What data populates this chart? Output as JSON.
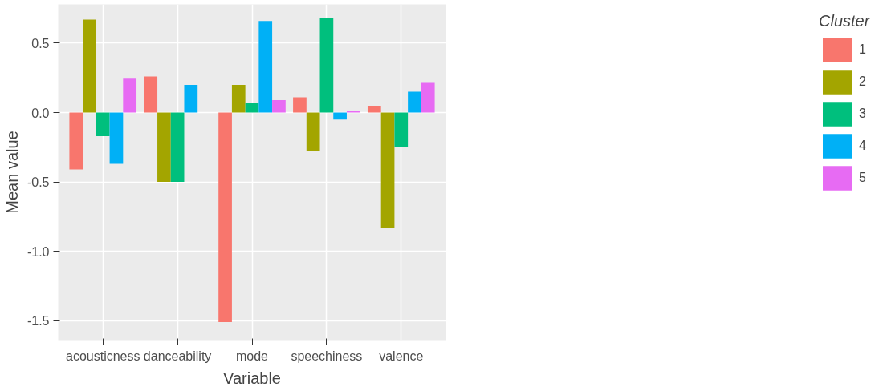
{
  "chart_data": {
    "type": "bar",
    "xlabel": "Variable",
    "ylabel": "Mean value",
    "legend_title": "Cluster",
    "legend": "right",
    "grid": true,
    "categories": [
      "acousticness",
      "danceability",
      "mode",
      "speechiness",
      "valence"
    ],
    "ylim": [
      -1.64,
      0.78
    ],
    "yticks": [
      {
        "value": -1.5,
        "label": "-1.5"
      },
      {
        "value": -1.0,
        "label": "-1.0"
      },
      {
        "value": -0.5,
        "label": "-0.5"
      },
      {
        "value": 0.0,
        "label": "0.0"
      },
      {
        "value": 0.5,
        "label": "0.5"
      }
    ],
    "series": [
      {
        "name": "1",
        "color": "#f8766d",
        "values": [
          -0.41,
          0.26,
          -1.51,
          0.11,
          0.05
        ]
      },
      {
        "name": "2",
        "color": "#a3a500",
        "values": [
          0.67,
          -0.5,
          0.2,
          -0.28,
          -0.83
        ]
      },
      {
        "name": "3",
        "color": "#00bf7d",
        "values": [
          -0.17,
          -0.5,
          0.07,
          0.68,
          -0.25
        ]
      },
      {
        "name": "4",
        "color": "#00b0f6",
        "values": [
          -0.37,
          0.2,
          0.66,
          -0.05,
          0.15
        ]
      },
      {
        "name": "5",
        "color": "#e76bf3",
        "values": [
          0.25,
          0.0,
          0.09,
          0.01,
          0.22
        ]
      }
    ]
  }
}
